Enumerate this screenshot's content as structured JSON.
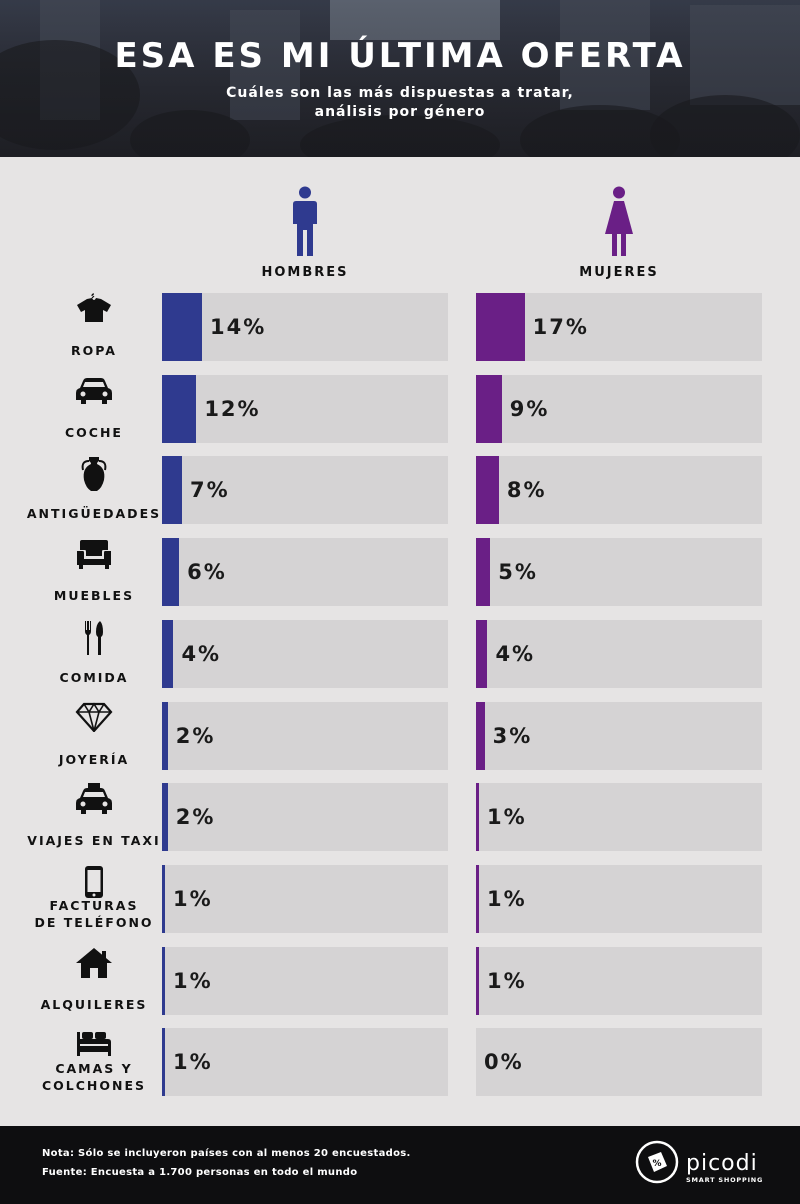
{
  "header": {
    "title": "ESA ES MI ÚLTIMA OFERTA",
    "subtitle_line1": "Cuáles son las más dispuestas a tratar,",
    "subtitle_line2": "análisis por género"
  },
  "colors": {
    "men": "#2f3a8f",
    "women": "#6a1f86",
    "track": "#d5d3d4",
    "background": "#e6e4e4"
  },
  "chart_data": {
    "type": "bar",
    "orientation": "horizontal",
    "xlim": [
      0,
      100
    ],
    "categories": [
      "ROPA",
      "COCHE",
      "ANTIGÜEDADES",
      "MUEBLES",
      "COMIDA",
      "JOYERÍA",
      "VIAJES EN TAXI",
      "FACTURAS DE TELÉFONO",
      "ALQUILERES",
      "CAMAS Y COLCHONES"
    ],
    "category_lines": [
      [
        "ROPA"
      ],
      [
        "COCHE"
      ],
      [
        "ANTIGÜEDADES"
      ],
      [
        "MUEBLES"
      ],
      [
        "COMIDA"
      ],
      [
        "JOYERÍA"
      ],
      [
        "VIAJES EN TAXI"
      ],
      [
        "FACTURAS",
        "DE TELÉFONO"
      ],
      [
        "ALQUILERES"
      ],
      [
        "CAMAS Y",
        "COLCHONES"
      ]
    ],
    "category_icons": [
      "shirt-icon",
      "car-icon",
      "vase-icon",
      "armchair-icon",
      "cutlery-icon",
      "diamond-icon",
      "taxi-icon",
      "phone-icon",
      "house-icon",
      "bed-icon"
    ],
    "series": [
      {
        "name": "HOMBRES",
        "values": [
          14,
          12,
          7,
          6,
          4,
          2,
          2,
          1,
          1,
          1
        ],
        "labels": [
          "14%",
          "12%",
          "7%",
          "6%",
          "4%",
          "2%",
          "2%",
          "1%",
          "1%",
          "1%"
        ]
      },
      {
        "name": "MUJERES",
        "values": [
          17,
          9,
          8,
          5,
          4,
          3,
          1,
          1,
          1,
          0
        ],
        "labels": [
          "17%",
          "9%",
          "8%",
          "5%",
          "4%",
          "3%",
          "1%",
          "1%",
          "1%",
          "0%"
        ]
      }
    ]
  },
  "footer": {
    "note": "Nota: Sólo se incluyeron países con al menos 20 encuestados.",
    "source": "Fuente: Encuesta a 1.700 personas en todo el mundo",
    "brand": "picodi",
    "tagline": "SMART SHOPPING"
  }
}
